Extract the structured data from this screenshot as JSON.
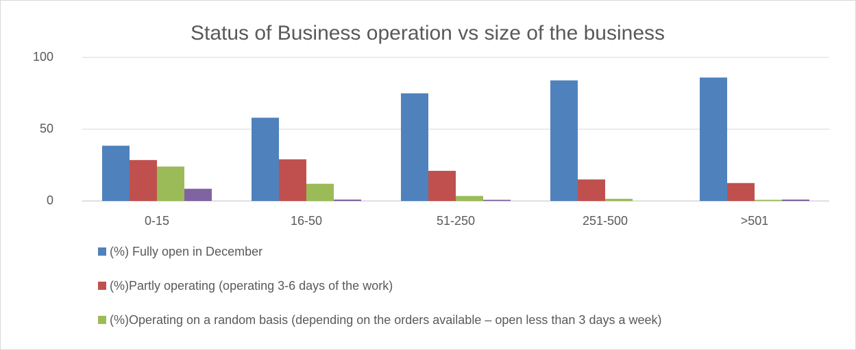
{
  "chart_data": {
    "type": "bar",
    "title": "Status of Business operation vs size of the business",
    "categories": [
      "0-15",
      "16-50",
      "51-250",
      "251-500",
      ">501"
    ],
    "series": [
      {
        "name": "(%) Fully open in December",
        "color": "#4f81bd",
        "values": [
          38.5,
          58,
          75,
          84,
          86
        ]
      },
      {
        "name": "(%)Partly operating (operating 3-6 days of the work)",
        "color": "#c0504d",
        "values": [
          28.5,
          29,
          21,
          15,
          12.5
        ]
      },
      {
        "name": "(%)Operating on a random basis (depending on the orders available – open less than 3 days a week)",
        "color": "#9bbb59",
        "values": [
          24,
          12,
          3.5,
          1.5,
          0.8
        ]
      },
      {
        "color": "#8064a2",
        "values": [
          8.5,
          1,
          0.8,
          0,
          1
        ]
      }
    ],
    "ylim": [
      0,
      100
    ],
    "yticks": [
      0,
      50,
      100
    ],
    "grid": true,
    "legend": "bottom"
  }
}
